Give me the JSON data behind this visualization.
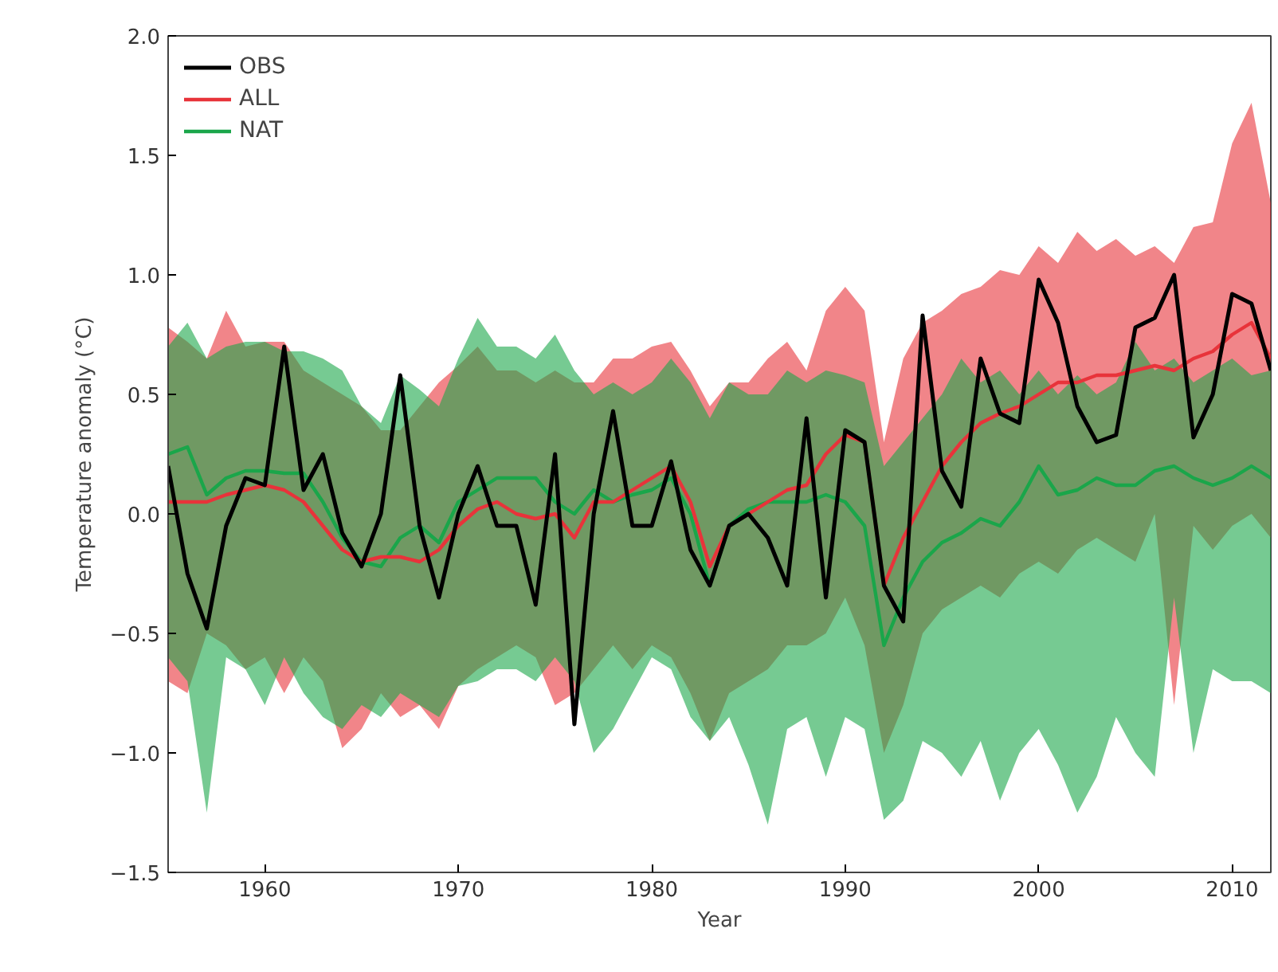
{
  "chart_data": {
    "type": "line",
    "xlabel": "Year",
    "ylabel": "Temperature anomaly (°C)",
    "x": [
      1955,
      1956,
      1957,
      1958,
      1959,
      1960,
      1961,
      1962,
      1963,
      1964,
      1965,
      1966,
      1967,
      1968,
      1969,
      1970,
      1971,
      1972,
      1973,
      1974,
      1975,
      1976,
      1977,
      1978,
      1979,
      1980,
      1981,
      1982,
      1983,
      1984,
      1985,
      1986,
      1987,
      1988,
      1989,
      1990,
      1991,
      1992,
      1993,
      1994,
      1995,
      1996,
      1997,
      1998,
      1999,
      2000,
      2001,
      2002,
      2003,
      2004,
      2005,
      2006,
      2007,
      2008,
      2009,
      2010,
      2011,
      2012
    ],
    "xlim": [
      1955,
      2012
    ],
    "xticks": [
      1960,
      1970,
      1980,
      1990,
      2000,
      2010
    ],
    "ylim": [
      -1.5,
      2.0
    ],
    "yticks": [
      {
        "value": -1.5,
        "label": "−1.5"
      },
      {
        "value": -1.0,
        "label": "−1.0"
      },
      {
        "value": -0.5,
        "label": "−0.5"
      },
      {
        "value": 0,
        "label": "0.0"
      },
      {
        "value": 0.5,
        "label": "0.5"
      },
      {
        "value": 1.0,
        "label": "1.0"
      },
      {
        "value": 1.5,
        "label": "1.5"
      },
      {
        "value": 2.0,
        "label": "2.0"
      }
    ],
    "grid": false,
    "legend": "top left",
    "marker": "none",
    "line_style": "solid",
    "series": [
      {
        "name": "OBS",
        "color": "#000000",
        "values": [
          0.2,
          -0.25,
          -0.48,
          -0.05,
          0.15,
          0.12,
          0.7,
          0.1,
          0.25,
          -0.08,
          -0.22,
          0.0,
          0.58,
          -0.05,
          -0.35,
          0.0,
          0.2,
          -0.05,
          -0.05,
          -0.38,
          0.25,
          -0.88,
          0.0,
          0.43,
          -0.05,
          -0.05,
          0.22,
          -0.15,
          -0.3,
          -0.05,
          0.0,
          -0.1,
          -0.3,
          0.4,
          -0.35,
          0.35,
          0.3,
          -0.3,
          -0.45,
          0.83,
          0.18,
          0.03,
          0.65,
          0.42,
          0.38,
          0.98,
          0.8,
          0.45,
          0.3,
          0.33,
          0.78,
          0.82,
          1.0,
          0.32,
          0.5,
          0.92,
          0.88,
          0.6
        ]
      },
      {
        "name": "ALL",
        "color": "#e8333a",
        "values": [
          0.05,
          0.05,
          0.05,
          0.08,
          0.1,
          0.12,
          0.1,
          0.05,
          -0.05,
          -0.15,
          -0.2,
          -0.18,
          -0.18,
          -0.2,
          -0.15,
          -0.05,
          0.02,
          0.05,
          0.0,
          -0.02,
          0.0,
          -0.1,
          0.05,
          0.05,
          0.1,
          0.15,
          0.2,
          0.05,
          -0.22,
          -0.05,
          0.0,
          0.05,
          0.1,
          0.12,
          0.25,
          0.33,
          0.3,
          -0.3,
          -0.1,
          0.05,
          0.2,
          0.3,
          0.38,
          0.42,
          0.45,
          0.5,
          0.55,
          0.55,
          0.58,
          0.58,
          0.6,
          0.62,
          0.6,
          0.65,
          0.68,
          0.75,
          0.8,
          0.65
        ],
        "upper": [
          0.78,
          0.72,
          0.65,
          0.85,
          0.7,
          0.72,
          0.72,
          0.6,
          0.55,
          0.5,
          0.45,
          0.35,
          0.35,
          0.45,
          0.55,
          0.62,
          0.7,
          0.6,
          0.6,
          0.55,
          0.6,
          0.55,
          0.55,
          0.65,
          0.65,
          0.7,
          0.72,
          0.6,
          0.45,
          0.55,
          0.55,
          0.65,
          0.72,
          0.6,
          0.85,
          0.95,
          0.85,
          0.3,
          0.65,
          0.8,
          0.85,
          0.92,
          0.95,
          1.02,
          1.0,
          1.12,
          1.05,
          1.18,
          1.1,
          1.15,
          1.08,
          1.12,
          1.05,
          1.2,
          1.22,
          1.55,
          1.72,
          1.3
        ],
        "lower": [
          -0.7,
          -0.75,
          -0.5,
          -0.55,
          -0.65,
          -0.6,
          -0.75,
          -0.6,
          -0.7,
          -0.98,
          -0.9,
          -0.75,
          -0.85,
          -0.8,
          -0.9,
          -0.72,
          -0.65,
          -0.6,
          -0.55,
          -0.6,
          -0.8,
          -0.75,
          -0.65,
          -0.55,
          -0.65,
          -0.55,
          -0.6,
          -0.75,
          -0.95,
          -0.75,
          -0.7,
          -0.65,
          -0.55,
          -0.55,
          -0.5,
          -0.35,
          -0.55,
          -1.0,
          -0.8,
          -0.5,
          -0.4,
          -0.35,
          -0.3,
          -0.35,
          -0.25,
          -0.2,
          -0.25,
          -0.15,
          -0.1,
          -0.15,
          -0.2,
          0.0,
          -0.8,
          -0.05,
          -0.15,
          -0.05,
          0.0,
          -0.1
        ]
      },
      {
        "name": "NAT",
        "color": "#1aa64a",
        "values": [
          0.25,
          0.28,
          0.08,
          0.15,
          0.18,
          0.18,
          0.17,
          0.17,
          0.05,
          -0.1,
          -0.2,
          -0.22,
          -0.1,
          -0.05,
          -0.12,
          0.05,
          0.1,
          0.15,
          0.15,
          0.15,
          0.05,
          0.0,
          0.1,
          0.05,
          0.08,
          0.1,
          0.15,
          0.0,
          -0.3,
          -0.05,
          0.02,
          0.05,
          0.05,
          0.05,
          0.08,
          0.05,
          -0.05,
          -0.55,
          -0.35,
          -0.2,
          -0.12,
          -0.08,
          -0.02,
          -0.05,
          0.05,
          0.2,
          0.08,
          0.1,
          0.15,
          0.12,
          0.12,
          0.18,
          0.2,
          0.15,
          0.12,
          0.15,
          0.2,
          0.15
        ],
        "upper": [
          0.7,
          0.8,
          0.65,
          0.7,
          0.72,
          0.72,
          0.68,
          0.68,
          0.65,
          0.6,
          0.45,
          0.38,
          0.58,
          0.52,
          0.45,
          0.65,
          0.82,
          0.7,
          0.7,
          0.65,
          0.75,
          0.6,
          0.5,
          0.55,
          0.5,
          0.55,
          0.65,
          0.55,
          0.4,
          0.55,
          0.5,
          0.5,
          0.6,
          0.55,
          0.6,
          0.58,
          0.55,
          0.2,
          0.3,
          0.4,
          0.5,
          0.65,
          0.55,
          0.6,
          0.5,
          0.6,
          0.5,
          0.58,
          0.5,
          0.55,
          0.72,
          0.6,
          0.65,
          0.55,
          0.6,
          0.65,
          0.58,
          0.6
        ],
        "lower": [
          -0.6,
          -0.7,
          -1.25,
          -0.6,
          -0.65,
          -0.8,
          -0.6,
          -0.75,
          -0.85,
          -0.9,
          -0.8,
          -0.85,
          -0.75,
          -0.8,
          -0.85,
          -0.72,
          -0.7,
          -0.65,
          -0.65,
          -0.7,
          -0.6,
          -0.7,
          -1.0,
          -0.9,
          -0.75,
          -0.6,
          -0.65,
          -0.85,
          -0.95,
          -0.85,
          -1.05,
          -1.3,
          -0.9,
          -0.85,
          -1.1,
          -0.85,
          -0.9,
          -1.28,
          -1.2,
          -0.95,
          -1.0,
          -1.1,
          -0.95,
          -1.2,
          -1.0,
          -0.9,
          -1.05,
          -1.25,
          -1.1,
          -0.85,
          -1.0,
          -1.1,
          -0.35,
          -1.0,
          -0.65,
          -0.7,
          -0.7,
          -0.75
        ]
      }
    ]
  }
}
